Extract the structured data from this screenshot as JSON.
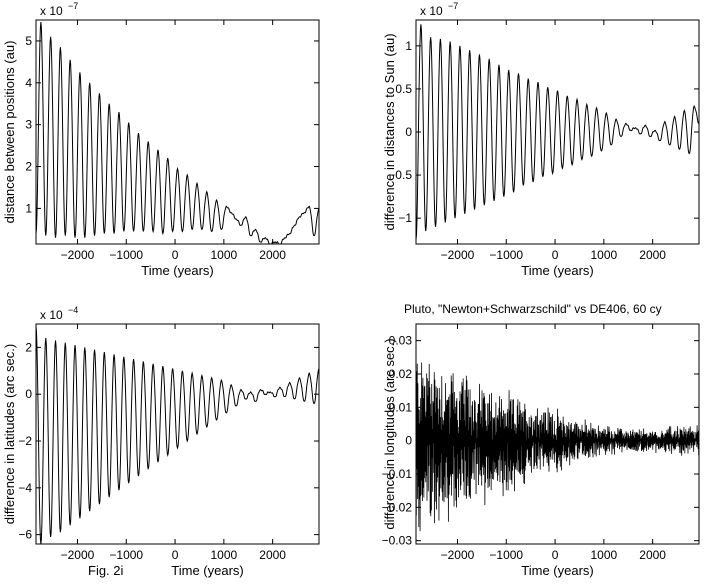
{
  "chart_data": [
    {
      "type": "line",
      "title": "",
      "xlabel": "Time (years)",
      "ylabel": "distance between positions (au)",
      "scale_label": "x 10",
      "scale_exponent": "−7",
      "xlim": [
        -2850,
        2950
      ],
      "ylim": [
        0.15,
        5.5
      ],
      "xticks": [
        -2000,
        -1000,
        0,
        1000,
        2000
      ],
      "xtick_labels": [
        "−2000",
        "−1000",
        "0",
        "1000",
        "2000"
      ],
      "yticks": [
        1,
        2,
        3,
        4,
        5
      ],
      "ytick_labels": [
        "1",
        "2",
        "3",
        "4",
        "5"
      ],
      "series": [
        {
          "x": [
            -2850,
            -2750,
            -2650,
            -2550,
            -2450,
            -2350,
            -2250,
            -2150,
            -2050,
            -1950,
            -1850,
            -1750,
            -1650,
            -1550,
            -1450,
            -1350,
            -1250,
            -1150,
            -1050,
            -950,
            -850,
            -750,
            -650,
            -550,
            -450,
            -350,
            -250,
            -150,
            -50,
            50,
            150,
            250,
            350,
            450,
            550,
            650,
            750,
            850,
            950,
            1050,
            1150,
            1250,
            1350,
            1450,
            1550,
            1650,
            1750,
            1850,
            1950,
            2050,
            2150,
            2250,
            2350,
            2450,
            2550,
            2650,
            2750,
            2850,
            2950
          ],
          "values": [
            0.4,
            5.45,
            0.35,
            5.1,
            0.3,
            4.85,
            0.35,
            4.55,
            0.3,
            4.25,
            0.3,
            4.0,
            0.35,
            3.75,
            0.4,
            3.5,
            0.4,
            3.3,
            0.45,
            3.05,
            0.45,
            2.8,
            0.45,
            2.6,
            0.45,
            2.4,
            0.4,
            2.2,
            0.45,
            1.95,
            0.45,
            1.8,
            0.5,
            1.6,
            0.5,
            1.4,
            0.45,
            1.2,
            0.5,
            1.05,
            0.9,
            0.75,
            0.6,
            0.8,
            0.35,
            0.5,
            0.2,
            0.3,
            0.15,
            0.2,
            0.15,
            0.3,
            0.4,
            0.6,
            0.8,
            0.9,
            1.05,
            0.35,
            1.0
          ]
        }
      ]
    },
    {
      "type": "line",
      "title": "",
      "xlabel": "Time (years)",
      "ylabel": "difference in distances to Sun (au)",
      "scale_label": "x 10",
      "scale_exponent": "−7",
      "xlim": [
        -2850,
        2950
      ],
      "ylim": [
        -1.3,
        1.3
      ],
      "xticks": [
        -2000,
        -1000,
        0,
        1000,
        2000
      ],
      "xtick_labels": [
        "−2000",
        "−1000",
        "0",
        "1000",
        "2000"
      ],
      "yticks": [
        1,
        0.5,
        0,
        -0.5,
        -1
      ],
      "ytick_labels": [
        "1",
        "0.5",
        "0",
        "−0.5",
        "−1"
      ],
      "series": [
        {
          "x": [
            -2850,
            -2750,
            -2650,
            -2550,
            -2450,
            -2350,
            -2250,
            -2150,
            -2050,
            -1950,
            -1850,
            -1750,
            -1650,
            -1550,
            -1450,
            -1350,
            -1250,
            -1150,
            -1050,
            -950,
            -850,
            -750,
            -650,
            -550,
            -450,
            -350,
            -250,
            -150,
            -50,
            50,
            150,
            250,
            350,
            450,
            550,
            650,
            750,
            850,
            950,
            1050,
            1150,
            1250,
            1350,
            1450,
            1550,
            1650,
            1750,
            1850,
            1950,
            2050,
            2150,
            2250,
            2350,
            2450,
            2550,
            2650,
            2750,
            2850,
            2950
          ],
          "values": [
            -1.25,
            1.25,
            -1.15,
            1.1,
            -1.1,
            1.08,
            -1.05,
            1.05,
            -1.0,
            1.0,
            -0.95,
            0.95,
            -0.9,
            0.9,
            -0.85,
            0.85,
            -0.8,
            0.78,
            -0.75,
            0.72,
            -0.7,
            0.68,
            -0.62,
            0.62,
            -0.58,
            0.58,
            -0.52,
            0.52,
            -0.48,
            0.48,
            -0.42,
            0.42,
            -0.38,
            0.38,
            -0.32,
            0.32,
            -0.28,
            0.28,
            -0.22,
            0.22,
            -0.15,
            0.15,
            -0.05,
            0.1,
            0.02,
            0.05,
            -0.02,
            0.08,
            -0.05,
            0.02,
            -0.1,
            0.12,
            -0.15,
            0.18,
            -0.2,
            0.25,
            -0.25,
            0.3,
            0.1
          ]
        }
      ]
    },
    {
      "type": "line",
      "title": "",
      "xlabel": "Time (years)",
      "caption": "Fig. 2i",
      "ylabel": "difference in latitudes (arc sec.)",
      "scale_label": "x 10",
      "scale_exponent": "−4",
      "xlim": [
        -2850,
        2950
      ],
      "ylim": [
        -6.4,
        3.0
      ],
      "xticks": [
        -2000,
        -1000,
        0,
        1000,
        2000
      ],
      "xtick_labels": [
        "−2000",
        "−1000",
        "0",
        "1000",
        "2000"
      ],
      "yticks": [
        2,
        0,
        -2,
        -4,
        -6
      ],
      "ytick_labels": [
        "2",
        "0",
        "−2",
        "−4",
        "−6"
      ],
      "series": [
        {
          "x": [
            -2850,
            -2750,
            -2650,
            -2550,
            -2450,
            -2350,
            -2250,
            -2150,
            -2050,
            -1950,
            -1850,
            -1750,
            -1650,
            -1550,
            -1450,
            -1350,
            -1250,
            -1150,
            -1050,
            -950,
            -850,
            -750,
            -650,
            -550,
            -450,
            -350,
            -250,
            -150,
            -50,
            50,
            150,
            250,
            350,
            450,
            550,
            650,
            750,
            850,
            950,
            1050,
            1150,
            1250,
            1350,
            1450,
            1550,
            1650,
            1750,
            1850,
            1950,
            2050,
            2150,
            2250,
            2350,
            2450,
            2550,
            2650,
            2750,
            2850,
            2950
          ],
          "values": [
            2.9,
            -6.4,
            2.4,
            -6.1,
            2.3,
            -5.9,
            2.2,
            -5.6,
            2.1,
            -5.3,
            2.0,
            -5.0,
            1.9,
            -4.7,
            1.8,
            -4.4,
            1.7,
            -4.1,
            1.6,
            -3.8,
            1.5,
            -3.5,
            1.4,
            -3.2,
            1.3,
            -2.9,
            1.2,
            -2.6,
            1.1,
            -2.3,
            1.0,
            -2.0,
            0.9,
            -1.7,
            0.8,
            -1.4,
            0.7,
            -1.1,
            0.6,
            -0.8,
            0.4,
            -0.5,
            0.2,
            -0.2,
            0.1,
            -0.3,
            0.2,
            0.0,
            0.1,
            -0.1,
            0.3,
            -0.1,
            0.5,
            -0.2,
            0.7,
            -0.3,
            0.9,
            -0.4,
            1.1
          ]
        }
      ]
    },
    {
      "type": "line",
      "title": "Pluto, \"Newton+Schwarzschild\" vs DE406, 60 cy",
      "xlabel": "Time (years)",
      "ylabel": "difference in longitudes (arc sec.)",
      "xlim": [
        -2850,
        2950
      ],
      "ylim": [
        -0.031,
        0.035
      ],
      "xticks": [
        -2000,
        -1000,
        0,
        1000,
        2000
      ],
      "xtick_labels": [
        "−2000",
        "−1000",
        "0",
        "1000",
        "2000"
      ],
      "yticks": [
        0.03,
        0.02,
        0.01,
        0,
        -0.01,
        -0.02,
        -0.03
      ],
      "ytick_labels": [
        "0.03",
        "0.02",
        "0.01",
        "0",
        "−0.01",
        "−0.02",
        "−0.03"
      ],
      "series": [
        {
          "x": [
            -2850,
            -2650,
            -2450,
            -2250,
            -2050,
            -1850,
            -1650,
            -1450,
            -1250,
            -1050,
            -850,
            -650,
            -450,
            -250,
            -50,
            150,
            350,
            550,
            750,
            950,
            1150,
            1350,
            1550,
            1750,
            1950,
            2150,
            2350,
            2550,
            2750,
            2950
          ],
          "upper": [
            0.032,
            0.031,
            0.028,
            0.026,
            0.024,
            0.022,
            0.021,
            0.019,
            0.018,
            0.016,
            0.015,
            0.014,
            0.013,
            0.012,
            0.011,
            0.009,
            0.008,
            0.007,
            0.006,
            0.005,
            0.005,
            0.004,
            0.004,
            0.004,
            0.004,
            0.004,
            0.005,
            0.005,
            0.005,
            0.005
          ],
          "lower": [
            -0.031,
            -0.03,
            -0.029,
            -0.027,
            -0.025,
            -0.024,
            -0.022,
            -0.021,
            -0.019,
            -0.018,
            -0.017,
            -0.015,
            -0.014,
            -0.012,
            -0.011,
            -0.01,
            -0.008,
            -0.007,
            -0.006,
            -0.005,
            -0.005,
            -0.004,
            -0.004,
            -0.004,
            -0.004,
            -0.004,
            -0.004,
            -0.005,
            -0.005,
            -0.005
          ]
        }
      ]
    }
  ]
}
